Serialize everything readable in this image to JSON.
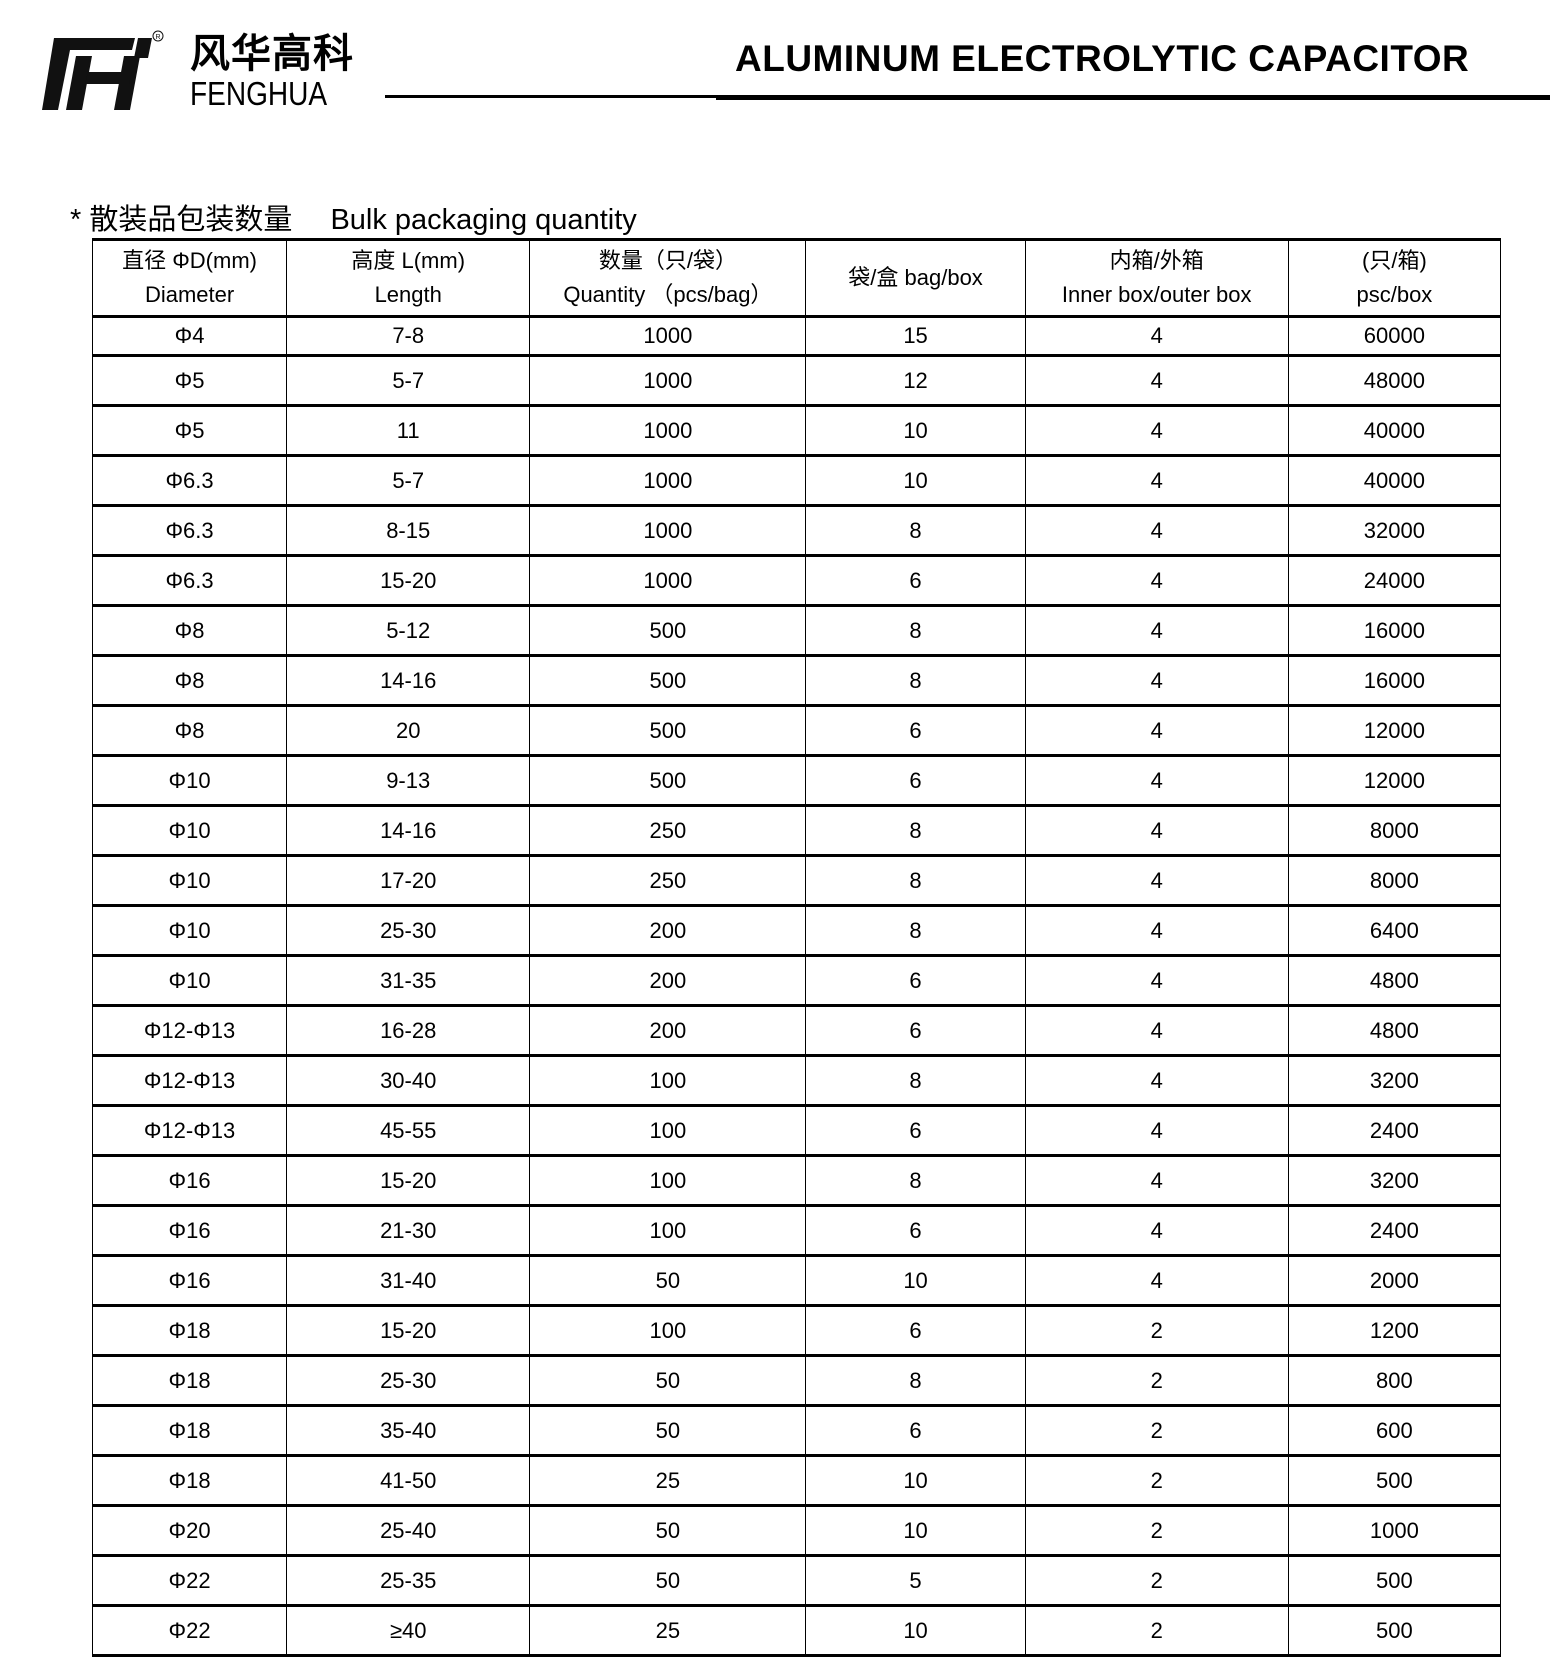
{
  "header": {
    "logo_cn": "风华高科",
    "logo_en": "FENGHUA",
    "logo_mark": "FH",
    "title": "ALUMINUM ELECTROLYTIC CAPACITOR"
  },
  "section": {
    "bullet": "*",
    "title_cn": "散装品包装数量",
    "title_en": "Bulk packaging quantity"
  },
  "table": {
    "headers": [
      {
        "cn": "直径 ΦD(mm)",
        "en": "Diameter"
      },
      {
        "cn": "高度 L(mm)",
        "en": "Length"
      },
      {
        "cn": "数量（只/袋）",
        "en": "Quantity （pcs/bag）"
      },
      {
        "cn": "袋/盒 bag/box",
        "en": ""
      },
      {
        "cn": "内箱/外箱",
        "en": "Inner box/outer box"
      },
      {
        "cn": "(只/箱)",
        "en": "psc/box"
      }
    ],
    "rows": [
      [
        "Φ4",
        "7-8",
        "1000",
        "15",
        "4",
        "60000"
      ],
      [
        "Φ5",
        "5-7",
        "1000",
        "12",
        "4",
        "48000"
      ],
      [
        "Φ5",
        "11",
        "1000",
        "10",
        "4",
        "40000"
      ],
      [
        "Φ6.3",
        "5-7",
        "1000",
        "10",
        "4",
        "40000"
      ],
      [
        "Φ6.3",
        "8-15",
        "1000",
        "8",
        "4",
        "32000"
      ],
      [
        "Φ6.3",
        "15-20",
        "1000",
        "6",
        "4",
        "24000"
      ],
      [
        "Φ8",
        "5-12",
        "500",
        "8",
        "4",
        "16000"
      ],
      [
        "Φ8",
        "14-16",
        "500",
        "8",
        "4",
        "16000"
      ],
      [
        "Φ8",
        "20",
        "500",
        "6",
        "4",
        "12000"
      ],
      [
        "Φ10",
        "9-13",
        "500",
        "6",
        "4",
        "12000"
      ],
      [
        "Φ10",
        "14-16",
        "250",
        "8",
        "4",
        "8000"
      ],
      [
        "Φ10",
        "17-20",
        "250",
        "8",
        "4",
        "8000"
      ],
      [
        "Φ10",
        "25-30",
        "200",
        "8",
        "4",
        "6400"
      ],
      [
        "Φ10",
        "31-35",
        "200",
        "6",
        "4",
        "4800"
      ],
      [
        "Φ12-Φ13",
        "16-28",
        "200",
        "6",
        "4",
        "4800"
      ],
      [
        "Φ12-Φ13",
        "30-40",
        "100",
        "8",
        "4",
        "3200"
      ],
      [
        "Φ12-Φ13",
        "45-55",
        "100",
        "6",
        "4",
        "2400"
      ],
      [
        "Φ16",
        "15-20",
        "100",
        "8",
        "4",
        "3200"
      ],
      [
        "Φ16",
        "21-30",
        "100",
        "6",
        "4",
        "2400"
      ],
      [
        "Φ16",
        "31-40",
        "50",
        "10",
        "4",
        "2000"
      ],
      [
        "Φ18",
        "15-20",
        "100",
        "6",
        "2",
        "1200"
      ],
      [
        "Φ18",
        "25-30",
        "50",
        "8",
        "2",
        "800"
      ],
      [
        "Φ18",
        "35-40",
        "50",
        "6",
        "2",
        "600"
      ],
      [
        "Φ18",
        "41-50",
        "25",
        "10",
        "2",
        "500"
      ],
      [
        "Φ20",
        "25-40",
        "50",
        "10",
        "2",
        "1000"
      ],
      [
        "Φ22",
        "25-35",
        "50",
        "5",
        "2",
        "500"
      ],
      [
        "Φ22",
        "≥40",
        "25",
        "10",
        "2",
        "500"
      ]
    ]
  }
}
